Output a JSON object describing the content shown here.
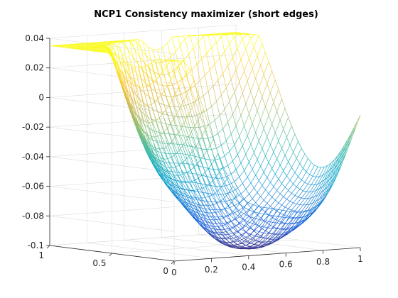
{
  "chart_data": {
    "type": "line",
    "subtype": "3d-mesh-lines",
    "title": "NCP1 Consistency maximizer (short edges)",
    "xlabel": "",
    "ylabel": "",
    "zlabel": "",
    "xlim": [
      0,
      1
    ],
    "ylim": [
      0,
      1
    ],
    "zlim": [
      -0.1,
      0.04
    ],
    "xticks": [
      "0",
      "0.2",
      "0.4",
      "0.6",
      "0.8",
      "1"
    ],
    "yticks": [
      "0",
      "0.5",
      "1"
    ],
    "zticks": [
      "-0.1",
      "-0.08",
      "-0.06",
      "-0.04",
      "-0.02",
      "0",
      "0.02",
      "0.04"
    ],
    "grid": true,
    "colormap": "parula",
    "colors": [
      "#352a87",
      "#0f5cdd",
      "#1481d6",
      "#06a4ca",
      "#2eb7a4",
      "#87bf77",
      "#d1bb59",
      "#fec832",
      "#f9fb0e"
    ],
    "surface_min": -0.1,
    "surface_min_at": [
      0.6,
      0.3
    ],
    "rim_values": [
      0.02,
      0.0,
      -0.02
    ]
  }
}
